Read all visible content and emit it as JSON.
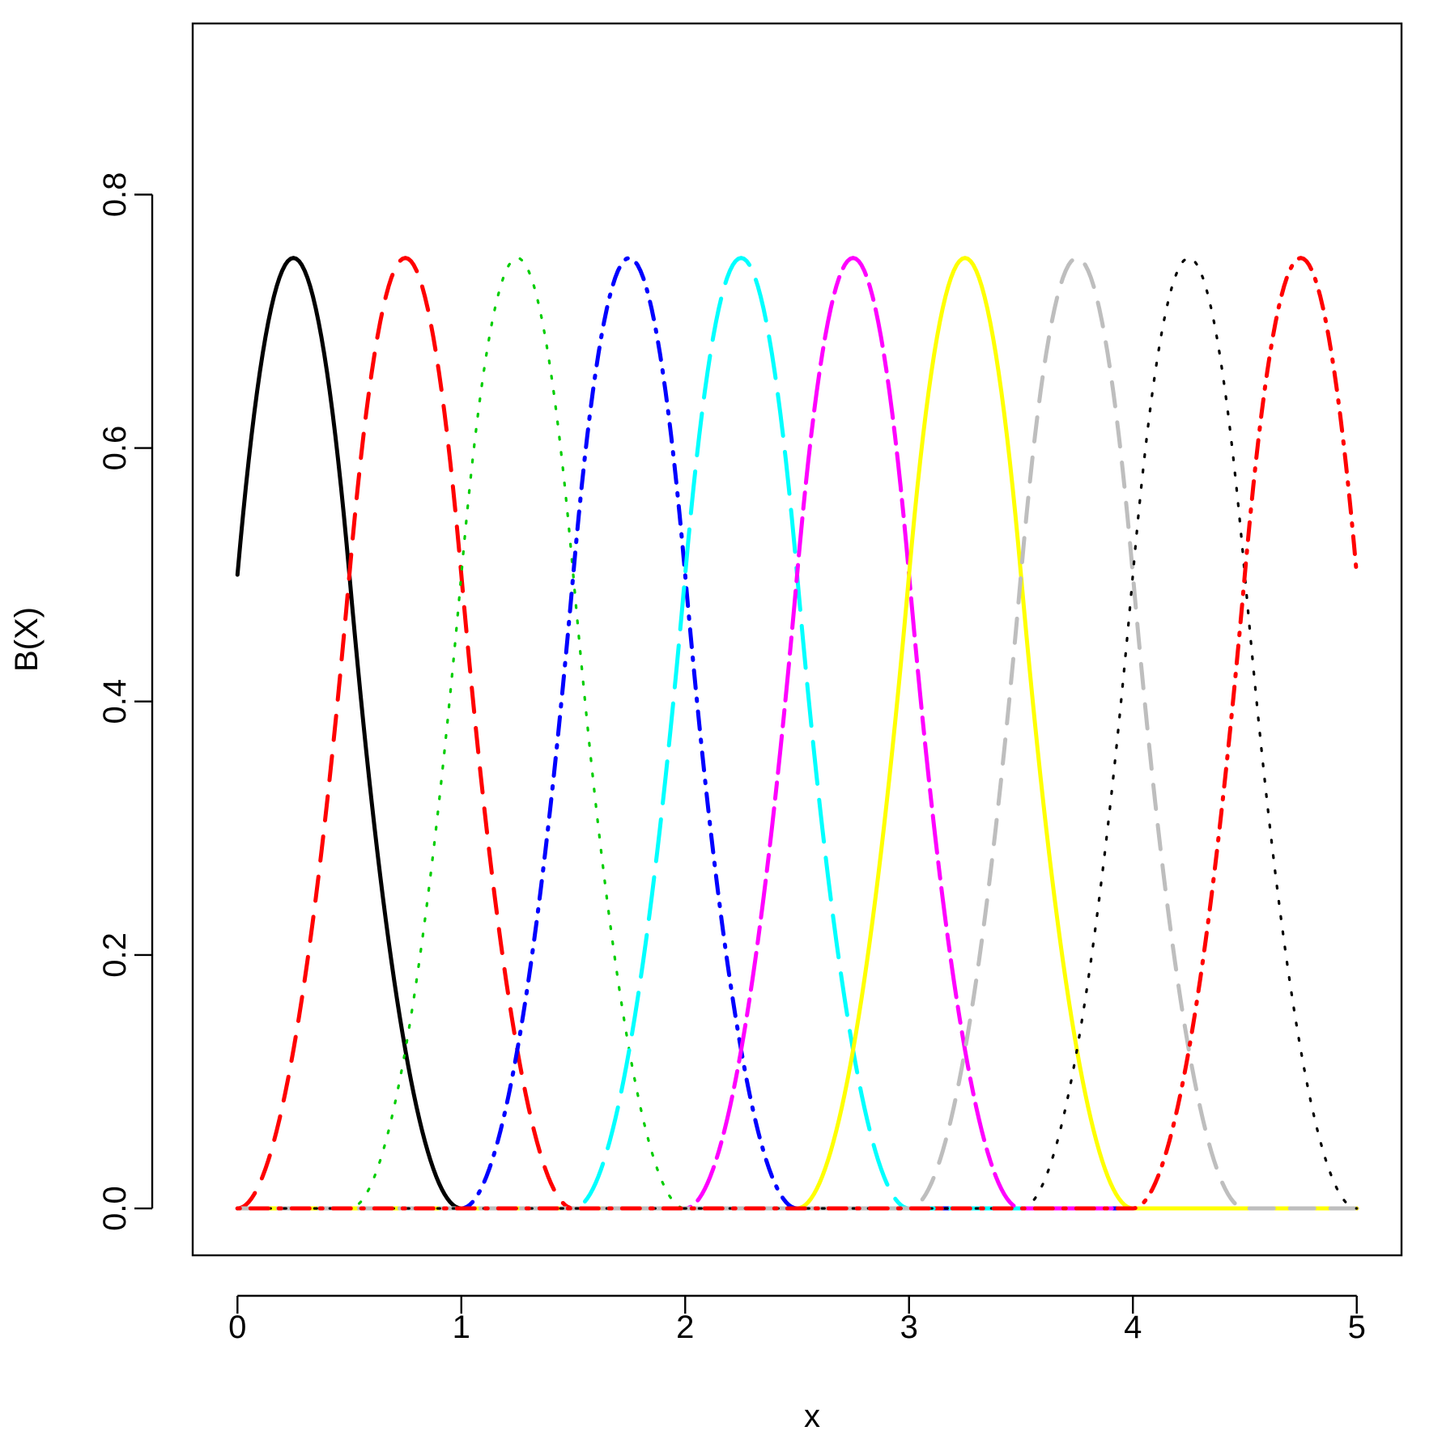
{
  "chart_data": {
    "type": "line",
    "xlabel": "x",
    "ylabel": "B(X)",
    "xlim": [
      -0.2,
      5.2
    ],
    "ylim": [
      -0.037,
      0.935
    ],
    "x_ticks": [
      0,
      1,
      2,
      3,
      4,
      5
    ],
    "x_tick_labels": [
      "0",
      "1",
      "2",
      "3",
      "4",
      "5"
    ],
    "y_ticks": [
      0.0,
      0.2,
      0.4,
      0.6,
      0.8
    ],
    "y_tick_labels": [
      "0.0",
      "0.2",
      "0.4",
      "0.6",
      "0.8"
    ],
    "grid": false,
    "legend": "none",
    "basis": "quadratic B-spline, knots every 0.5, over [0, 5]",
    "series": [
      {
        "center": 0.25,
        "color": "#000000",
        "dash": "solid",
        "values": [
          [
            0,
            0.5
          ],
          [
            0.25,
            0.75
          ],
          [
            0.5,
            0.5
          ],
          [
            0.75,
            0.125
          ],
          [
            1,
            0
          ]
        ]
      },
      {
        "center": 0.75,
        "color": "#ff0000",
        "dash": "dashed",
        "values": [
          [
            0,
            0
          ],
          [
            0.25,
            0.125
          ],
          [
            0.5,
            0.5
          ],
          [
            0.75,
            0.75
          ],
          [
            1,
            0.5
          ],
          [
            1.25,
            0.125
          ],
          [
            1.5,
            0
          ]
        ]
      },
      {
        "center": 1.25,
        "color": "#00cd00",
        "dash": "dotted",
        "values": [
          [
            0.5,
            0
          ],
          [
            0.75,
            0.125
          ],
          [
            1,
            0.5
          ],
          [
            1.25,
            0.75
          ],
          [
            1.5,
            0.5
          ],
          [
            1.75,
            0.125
          ],
          [
            2,
            0
          ]
        ]
      },
      {
        "center": 1.75,
        "color": "#0000ff",
        "dash": "dotdash",
        "values": [
          [
            1,
            0
          ],
          [
            1.25,
            0.125
          ],
          [
            1.5,
            0.5
          ],
          [
            1.75,
            0.75
          ],
          [
            2,
            0.5
          ],
          [
            2.25,
            0.125
          ],
          [
            2.5,
            0
          ]
        ]
      },
      {
        "center": 2.25,
        "color": "#00ffff",
        "dash": "longdash",
        "values": [
          [
            1.5,
            0
          ],
          [
            1.75,
            0.125
          ],
          [
            2,
            0.5
          ],
          [
            2.25,
            0.75
          ],
          [
            2.5,
            0.5
          ],
          [
            2.75,
            0.125
          ],
          [
            3,
            0
          ]
        ]
      },
      {
        "center": 2.75,
        "color": "#ff00ff",
        "dash": "twodash",
        "values": [
          [
            2,
            0
          ],
          [
            2.25,
            0.125
          ],
          [
            2.5,
            0.5
          ],
          [
            2.75,
            0.75
          ],
          [
            3,
            0.5
          ],
          [
            3.25,
            0.125
          ],
          [
            3.5,
            0
          ]
        ]
      },
      {
        "center": 3.25,
        "color": "#ffff00",
        "dash": "solid",
        "values": [
          [
            2.5,
            0
          ],
          [
            2.75,
            0.125
          ],
          [
            3,
            0.5
          ],
          [
            3.25,
            0.75
          ],
          [
            3.5,
            0.5
          ],
          [
            3.75,
            0.125
          ],
          [
            4,
            0
          ]
        ]
      },
      {
        "center": 3.75,
        "color": "#bebebe",
        "dash": "dashed",
        "values": [
          [
            3,
            0
          ],
          [
            3.25,
            0.125
          ],
          [
            3.5,
            0.5
          ],
          [
            3.75,
            0.75
          ],
          [
            4,
            0.5
          ],
          [
            4.25,
            0.125
          ],
          [
            4.5,
            0
          ]
        ]
      },
      {
        "center": 4.25,
        "color": "#000000",
        "dash": "dotted",
        "values": [
          [
            3.5,
            0
          ],
          [
            3.75,
            0.125
          ],
          [
            4,
            0.5
          ],
          [
            4.25,
            0.75
          ],
          [
            4.5,
            0.5
          ],
          [
            4.75,
            0.125
          ],
          [
            5,
            0
          ]
        ]
      },
      {
        "center": 4.75,
        "color": "#ff0000",
        "dash": "dotdash",
        "values": [
          [
            4,
            0
          ],
          [
            4.25,
            0.125
          ],
          [
            4.5,
            0.5
          ],
          [
            4.75,
            0.75
          ],
          [
            5,
            0.5
          ]
        ]
      }
    ]
  }
}
